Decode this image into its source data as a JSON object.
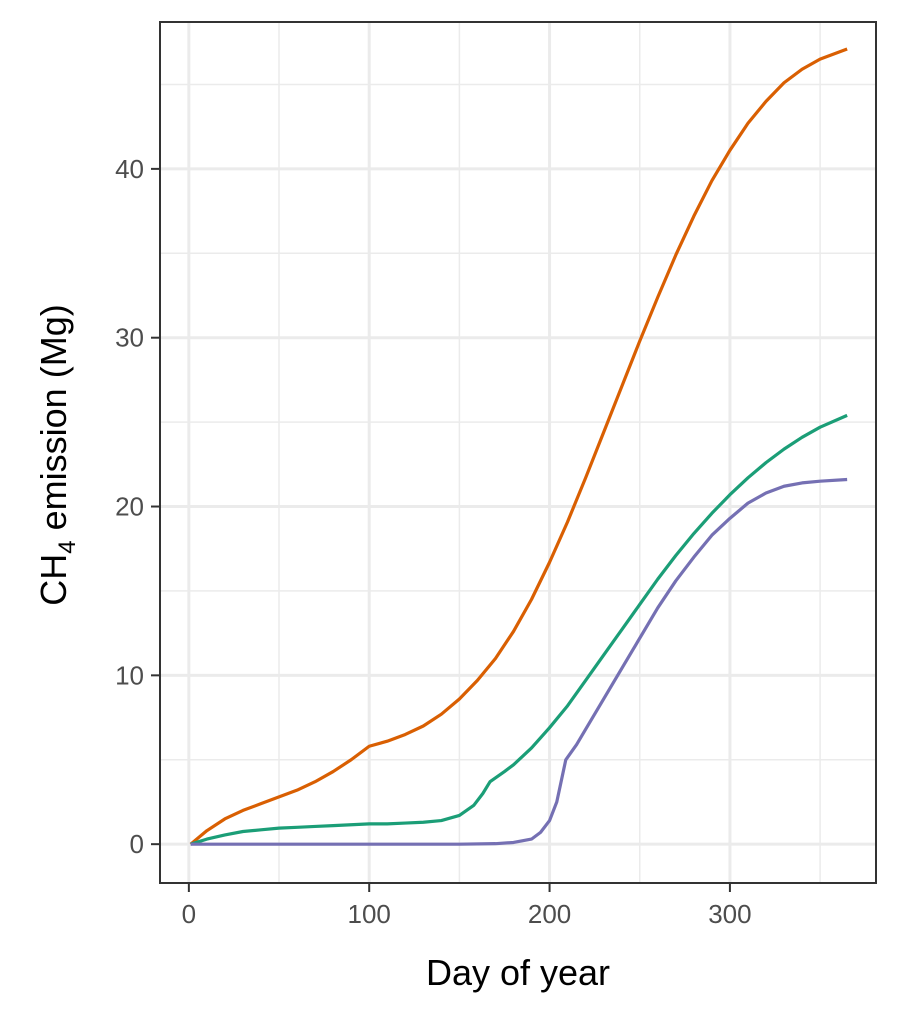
{
  "chart_data": {
    "type": "line",
    "title": "",
    "xlabel": "Day of year",
    "ylabel": {
      "main": "CH",
      "subscript": "4",
      "rest": " emission ",
      "unit_open": "(",
      "unit": "Mg",
      "unit_close": ")"
    },
    "xlim": [
      -16,
      381
    ],
    "ylim": [
      -2.3,
      48.7
    ],
    "x_ticks": [
      0,
      100,
      200,
      300
    ],
    "x_tick_labels": [
      "0",
      "100",
      "200",
      "300"
    ],
    "y_ticks": [
      0,
      10,
      20,
      30,
      40
    ],
    "y_tick_labels": [
      "0",
      "10",
      "20",
      "30",
      "40"
    ],
    "grid": true,
    "legend": "none",
    "series": [
      {
        "color": "#d95f02",
        "points": [
          [
            1,
            0
          ],
          [
            10,
            0.8
          ],
          [
            20,
            1.5
          ],
          [
            30,
            2.0
          ],
          [
            40,
            2.4
          ],
          [
            50,
            2.8
          ],
          [
            60,
            3.2
          ],
          [
            70,
            3.7
          ],
          [
            80,
            4.3
          ],
          [
            90,
            5.0
          ],
          [
            100,
            5.8
          ],
          [
            110,
            6.1
          ],
          [
            120,
            6.5
          ],
          [
            130,
            7.0
          ],
          [
            140,
            7.7
          ],
          [
            150,
            8.6
          ],
          [
            160,
            9.7
          ],
          [
            170,
            11.0
          ],
          [
            180,
            12.6
          ],
          [
            190,
            14.5
          ],
          [
            200,
            16.7
          ],
          [
            210,
            19.1
          ],
          [
            220,
            21.7
          ],
          [
            230,
            24.4
          ],
          [
            240,
            27.1
          ],
          [
            250,
            29.8
          ],
          [
            260,
            32.4
          ],
          [
            270,
            34.9
          ],
          [
            280,
            37.2
          ],
          [
            290,
            39.3
          ],
          [
            300,
            41.1
          ],
          [
            310,
            42.7
          ],
          [
            320,
            44.0
          ],
          [
            330,
            45.1
          ],
          [
            340,
            45.9
          ],
          [
            350,
            46.5
          ],
          [
            365,
            47.1
          ]
        ]
      },
      {
        "color": "#1b9e77",
        "points": [
          [
            1,
            0
          ],
          [
            10,
            0.3
          ],
          [
            20,
            0.55
          ],
          [
            30,
            0.75
          ],
          [
            40,
            0.85
          ],
          [
            50,
            0.95
          ],
          [
            60,
            1.0
          ],
          [
            70,
            1.05
          ],
          [
            80,
            1.1
          ],
          [
            90,
            1.15
          ],
          [
            100,
            1.2
          ],
          [
            110,
            1.2
          ],
          [
            120,
            1.25
          ],
          [
            130,
            1.3
          ],
          [
            140,
            1.4
          ],
          [
            150,
            1.7
          ],
          [
            158,
            2.3
          ],
          [
            163,
            3.0
          ],
          [
            167,
            3.7
          ],
          [
            175,
            4.3
          ],
          [
            180,
            4.7
          ],
          [
            190,
            5.7
          ],
          [
            200,
            6.9
          ],
          [
            210,
            8.2
          ],
          [
            220,
            9.7
          ],
          [
            230,
            11.2
          ],
          [
            240,
            12.7
          ],
          [
            250,
            14.2
          ],
          [
            260,
            15.7
          ],
          [
            270,
            17.1
          ],
          [
            280,
            18.4
          ],
          [
            290,
            19.6
          ],
          [
            300,
            20.7
          ],
          [
            310,
            21.7
          ],
          [
            320,
            22.6
          ],
          [
            330,
            23.4
          ],
          [
            340,
            24.1
          ],
          [
            350,
            24.7
          ],
          [
            365,
            25.4
          ]
        ]
      },
      {
        "color": "#7570b3",
        "points": [
          [
            1,
            0
          ],
          [
            50,
            0
          ],
          [
            100,
            0
          ],
          [
            150,
            0
          ],
          [
            170,
            0.03
          ],
          [
            180,
            0.1
          ],
          [
            190,
            0.3
          ],
          [
            195,
            0.7
          ],
          [
            200,
            1.4
          ],
          [
            204,
            2.5
          ],
          [
            207,
            4.0
          ],
          [
            209,
            5.0
          ],
          [
            215,
            5.9
          ],
          [
            220,
            6.8
          ],
          [
            230,
            8.6
          ],
          [
            240,
            10.4
          ],
          [
            250,
            12.2
          ],
          [
            260,
            14.0
          ],
          [
            270,
            15.6
          ],
          [
            280,
            17.0
          ],
          [
            290,
            18.3
          ],
          [
            300,
            19.3
          ],
          [
            310,
            20.2
          ],
          [
            320,
            20.8
          ],
          [
            330,
            21.2
          ],
          [
            340,
            21.4
          ],
          [
            350,
            21.5
          ],
          [
            365,
            21.6
          ]
        ]
      }
    ]
  }
}
